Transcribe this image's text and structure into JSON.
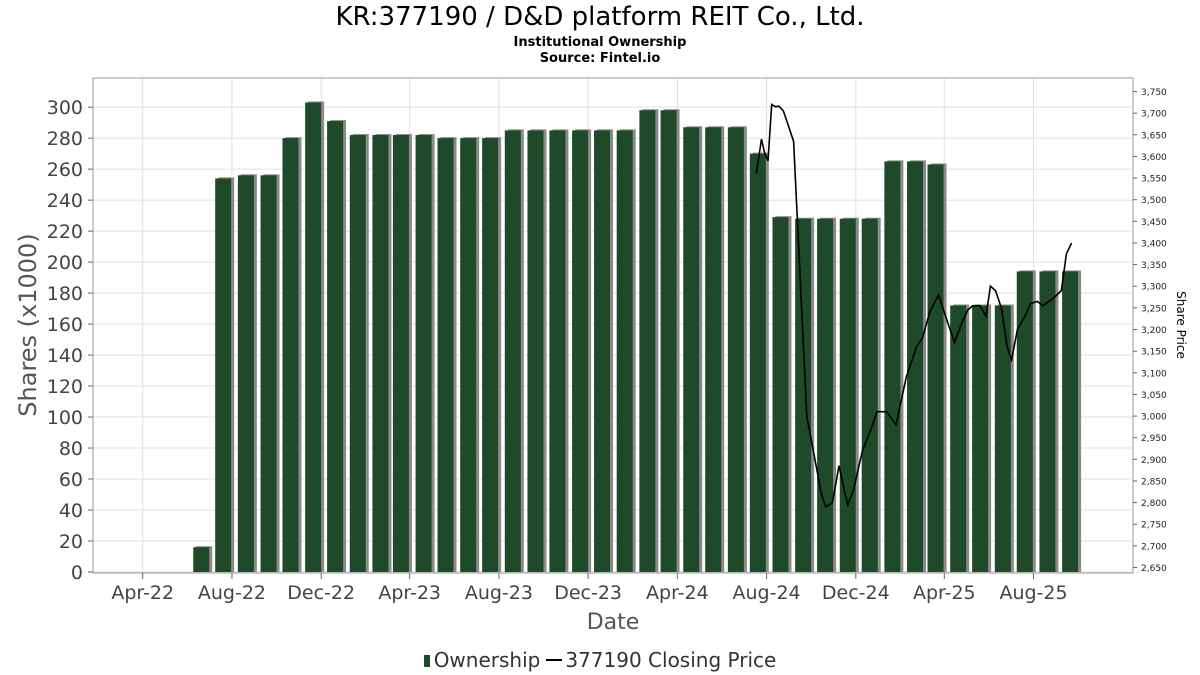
{
  "chart_data": {
    "type": "bar",
    "title": "KR:377190 / D&D platform REIT Co., Ltd.",
    "subtitle": "Institutional Ownership",
    "source": "Source: Fintel.io",
    "xlabel": "Date",
    "ylabel": "Shares (x1000)",
    "y2label": "Share Price",
    "ylim": [
      0,
      305
    ],
    "y2lim": [
      2640,
      3760
    ],
    "yticks": [
      0,
      20,
      40,
      60,
      80,
      100,
      120,
      140,
      160,
      180,
      200,
      220,
      240,
      260,
      280,
      300
    ],
    "y2ticks": [
      2650,
      2700,
      2750,
      2800,
      2850,
      2900,
      2950,
      3000,
      3050,
      3100,
      3150,
      3200,
      3250,
      3300,
      3350,
      3400,
      3450,
      3500,
      3550,
      3600,
      3650,
      3700,
      3750
    ],
    "y2tick_labels": [
      "2,650",
      "2,700",
      "2,750",
      "2,800",
      "2,850",
      "2,900",
      "2,950",
      "3,000",
      "3,050",
      "3,100",
      "3,150",
      "3,200",
      "3,250",
      "3,300",
      "3,350",
      "3,400",
      "3,450",
      "3,500",
      "3,550",
      "3,600",
      "3,650",
      "3,700",
      "3,750"
    ],
    "xlim": [
      "2022-01-23",
      "2025-12-15"
    ],
    "xticks": [
      {
        "date": "2022-04-01",
        "label": "Apr-22"
      },
      {
        "date": "2022-08-01",
        "label": "Aug-22"
      },
      {
        "date": "2022-12-01",
        "label": "Dec-22"
      },
      {
        "date": "2023-04-01",
        "label": "Apr-23"
      },
      {
        "date": "2023-08-01",
        "label": "Aug-23"
      },
      {
        "date": "2023-12-01",
        "label": "Dec-23"
      },
      {
        "date": "2024-04-01",
        "label": "Apr-24"
      },
      {
        "date": "2024-08-01",
        "label": "Aug-24"
      },
      {
        "date": "2024-12-01",
        "label": "Dec-24"
      },
      {
        "date": "2025-04-01",
        "label": "Apr-25"
      },
      {
        "date": "2025-08-01",
        "label": "Aug-25"
      }
    ],
    "grid": true,
    "series": [
      {
        "name": "Ownership",
        "type": "bar",
        "color": "#1e4a2a",
        "points": [
          {
            "date": "2022-06-20",
            "value": 16
          },
          {
            "date": "2022-07-20",
            "value": 254
          },
          {
            "date": "2022-08-20",
            "value": 256
          },
          {
            "date": "2022-09-20",
            "value": 256
          },
          {
            "date": "2022-10-20",
            "value": 280
          },
          {
            "date": "2022-11-20",
            "value": 303
          },
          {
            "date": "2022-12-20",
            "value": 291
          },
          {
            "date": "2023-01-20",
            "value": 282
          },
          {
            "date": "2023-02-20",
            "value": 282
          },
          {
            "date": "2023-03-20",
            "value": 282
          },
          {
            "date": "2023-04-20",
            "value": 282
          },
          {
            "date": "2023-05-20",
            "value": 280
          },
          {
            "date": "2023-06-20",
            "value": 280
          },
          {
            "date": "2023-07-20",
            "value": 280
          },
          {
            "date": "2023-08-20",
            "value": 285
          },
          {
            "date": "2023-09-20",
            "value": 285
          },
          {
            "date": "2023-10-20",
            "value": 285
          },
          {
            "date": "2023-11-20",
            "value": 285
          },
          {
            "date": "2023-12-20",
            "value": 285
          },
          {
            "date": "2024-01-20",
            "value": 285
          },
          {
            "date": "2024-02-20",
            "value": 298
          },
          {
            "date": "2024-03-20",
            "value": 298
          },
          {
            "date": "2024-04-20",
            "value": 287
          },
          {
            "date": "2024-05-20",
            "value": 287
          },
          {
            "date": "2024-06-20",
            "value": 287
          },
          {
            "date": "2024-07-20",
            "value": 270
          },
          {
            "date": "2024-08-20",
            "value": 229
          },
          {
            "date": "2024-09-20",
            "value": 228
          },
          {
            "date": "2024-10-20",
            "value": 228
          },
          {
            "date": "2024-11-20",
            "value": 228
          },
          {
            "date": "2024-12-20",
            "value": 228
          },
          {
            "date": "2025-01-20",
            "value": 265
          },
          {
            "date": "2025-02-20",
            "value": 265
          },
          {
            "date": "2025-03-20",
            "value": 263
          },
          {
            "date": "2025-04-20",
            "value": 172
          },
          {
            "date": "2025-05-20",
            "value": 172
          },
          {
            "date": "2025-06-20",
            "value": 172
          },
          {
            "date": "2025-07-20",
            "value": 194
          },
          {
            "date": "2025-08-20",
            "value": 194
          },
          {
            "date": "2025-09-20",
            "value": 194
          }
        ]
      },
      {
        "name": "377190 Closing Price",
        "type": "line",
        "axis": "y2",
        "color": "#000000",
        "points": [
          {
            "date": "2024-07-18",
            "value": 3560
          },
          {
            "date": "2024-07-25",
            "value": 3640
          },
          {
            "date": "2024-07-29",
            "value": 3610
          },
          {
            "date": "2024-08-03",
            "value": 3590
          },
          {
            "date": "2024-08-08",
            "value": 3720
          },
          {
            "date": "2024-08-13",
            "value": 3715
          },
          {
            "date": "2024-08-18",
            "value": 3716
          },
          {
            "date": "2024-08-24",
            "value": 3705
          },
          {
            "date": "2024-08-30",
            "value": 3675
          },
          {
            "date": "2024-09-07",
            "value": 3635
          },
          {
            "date": "2024-09-25",
            "value": 3000
          },
          {
            "date": "2024-10-15",
            "value": 2820
          },
          {
            "date": "2024-10-21",
            "value": 2790
          },
          {
            "date": "2024-10-30",
            "value": 2800
          },
          {
            "date": "2024-11-08",
            "value": 2885
          },
          {
            "date": "2024-11-15",
            "value": 2830
          },
          {
            "date": "2024-11-20",
            "value": 2795
          },
          {
            "date": "2024-11-28",
            "value": 2830
          },
          {
            "date": "2024-12-10",
            "value": 2920
          },
          {
            "date": "2024-12-22",
            "value": 2970
          },
          {
            "date": "2024-12-30",
            "value": 3010
          },
          {
            "date": "2025-01-12",
            "value": 3010
          },
          {
            "date": "2025-01-25",
            "value": 2980
          },
          {
            "date": "2025-02-08",
            "value": 3090
          },
          {
            "date": "2025-02-22",
            "value": 3160
          },
          {
            "date": "2025-03-02",
            "value": 3180
          },
          {
            "date": "2025-03-12",
            "value": 3240
          },
          {
            "date": "2025-03-24",
            "value": 3280
          },
          {
            "date": "2025-04-05",
            "value": 3220
          },
          {
            "date": "2025-04-15",
            "value": 3170
          },
          {
            "date": "2025-04-25",
            "value": 3215
          },
          {
            "date": "2025-05-03",
            "value": 3245
          },
          {
            "date": "2025-05-10",
            "value": 3255
          },
          {
            "date": "2025-05-20",
            "value": 3255
          },
          {
            "date": "2025-05-28",
            "value": 3230
          },
          {
            "date": "2025-06-03",
            "value": 3300
          },
          {
            "date": "2025-06-10",
            "value": 3290
          },
          {
            "date": "2025-06-18",
            "value": 3250
          },
          {
            "date": "2025-06-26",
            "value": 3160
          },
          {
            "date": "2025-07-02",
            "value": 3130
          },
          {
            "date": "2025-07-10",
            "value": 3200
          },
          {
            "date": "2025-07-20",
            "value": 3230
          },
          {
            "date": "2025-07-28",
            "value": 3260
          },
          {
            "date": "2025-08-06",
            "value": 3265
          },
          {
            "date": "2025-08-14",
            "value": 3255
          },
          {
            "date": "2025-08-22",
            "value": 3265
          },
          {
            "date": "2025-08-30",
            "value": 3275
          },
          {
            "date": "2025-09-08",
            "value": 3290
          },
          {
            "date": "2025-09-15",
            "value": 3375
          },
          {
            "date": "2025-09-22",
            "value": 3400
          }
        ]
      }
    ]
  },
  "legend": {
    "bar_label": "Ownership",
    "line_label": "377190 Closing Price"
  }
}
